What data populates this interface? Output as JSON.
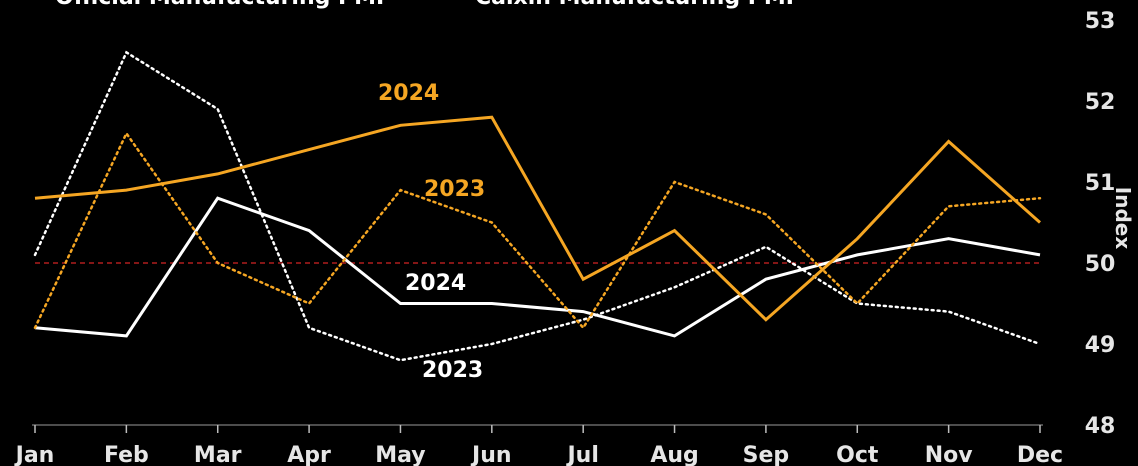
{
  "chart_data": {
    "type": "line",
    "legend": [
      {
        "label": "Official Manufacturing PMI",
        "color": "#ffffff"
      },
      {
        "label": "Caixin Manufacturing PMI",
        "color": "#f5a623"
      }
    ],
    "categories": [
      "Jan",
      "Feb",
      "Mar",
      "Apr",
      "May",
      "Jun",
      "Jul",
      "Aug",
      "Sep",
      "Oct",
      "Nov",
      "Dec"
    ],
    "ylabel": "Index",
    "ylim": [
      48,
      53
    ],
    "yticks": [
      "48",
      "49",
      "50",
      "51",
      "52",
      "53"
    ],
    "reference_line": {
      "value": 50,
      "color": "#b01e1e",
      "style": "dashed"
    },
    "series": [
      {
        "name": "2024",
        "group": "Official Manufacturing PMI",
        "color": "#ffffff",
        "style": "solid",
        "values": [
          49.2,
          49.1,
          50.8,
          50.4,
          49.5,
          49.5,
          49.4,
          49.1,
          49.8,
          50.1,
          50.3,
          50.1
        ]
      },
      {
        "name": "2023",
        "group": "Official Manufacturing PMI",
        "color": "#ffffff",
        "style": "dotted",
        "values": [
          50.1,
          52.6,
          51.9,
          49.2,
          48.8,
          49.0,
          49.3,
          49.7,
          50.2,
          49.5,
          49.4,
          49.0
        ]
      },
      {
        "name": "2024",
        "group": "Caixin Manufacturing PMI",
        "color": "#f5a623",
        "style": "solid",
        "values": [
          50.8,
          50.9,
          51.1,
          51.4,
          51.7,
          51.8,
          49.8,
          50.4,
          49.3,
          50.3,
          51.5,
          50.5
        ]
      },
      {
        "name": "2023",
        "group": "Caixin Manufacturing PMI",
        "color": "#f5a623",
        "style": "dotted",
        "values": [
          49.2,
          51.6,
          50.0,
          49.5,
          50.9,
          50.5,
          49.2,
          51.0,
          50.6,
          49.5,
          50.7,
          50.8
        ]
      }
    ]
  }
}
